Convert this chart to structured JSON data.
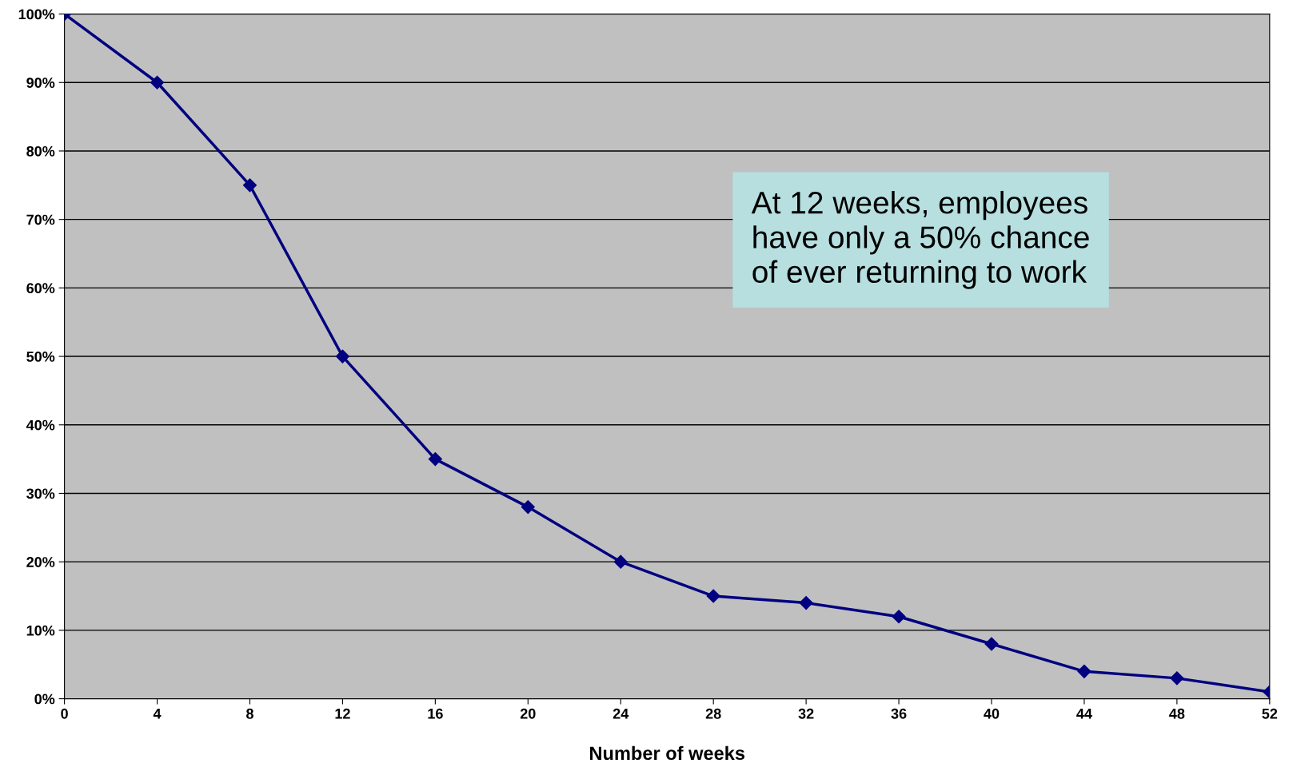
{
  "chart_data": {
    "type": "line",
    "xlabel": "Number of weeks",
    "x": [
      0,
      4,
      8,
      12,
      16,
      20,
      24,
      28,
      32,
      36,
      40,
      44,
      48,
      52
    ],
    "series": [
      {
        "color": "#000080",
        "values": [
          100,
          90,
          75,
          50,
          35,
          28,
          20,
          15,
          14,
          12,
          8,
          4,
          3,
          1
        ]
      }
    ],
    "xlim": [
      0,
      52
    ],
    "xticks": [
      0,
      4,
      8,
      12,
      16,
      20,
      24,
      28,
      32,
      36,
      40,
      44,
      48,
      52
    ],
    "ylim": [
      0,
      100
    ],
    "yticks": [
      {
        "value": 0,
        "label": "0%"
      },
      {
        "value": 10,
        "label": "10%"
      },
      {
        "value": 20,
        "label": "20%"
      },
      {
        "value": 30,
        "label": "30%"
      },
      {
        "value": 40,
        "label": "40%"
      },
      {
        "value": 50,
        "label": "50%"
      },
      {
        "value": 60,
        "label": "60%"
      },
      {
        "value": 70,
        "label": "70%"
      },
      {
        "value": 80,
        "label": "80%"
      },
      {
        "value": 90,
        "label": "90%"
      },
      {
        "value": 100,
        "label": "100%"
      }
    ],
    "grid": "y",
    "marker": "diamond",
    "line_style": "solid",
    "legend": false,
    "annotations": [
      "At 12 weeks, employees\nhave only a 50% chance\nof ever returning to work"
    ]
  }
}
